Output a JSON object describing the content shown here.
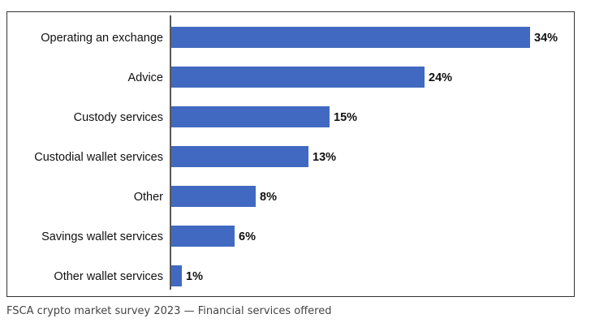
{
  "chart_data": {
    "type": "bar",
    "orientation": "horizontal",
    "title": "",
    "xlabel": "",
    "ylabel": "",
    "categories": [
      "Operating an exchange",
      "Advice",
      "Custody services",
      "Custodial wallet services",
      "Other",
      "Savings wallet services",
      "Other wallet services"
    ],
    "values": [
      34,
      24,
      15,
      13,
      8,
      6,
      1
    ],
    "value_suffix": "%",
    "xlim": [
      0,
      34
    ],
    "bar_color": "#4169C1",
    "grid": false,
    "legend": "none"
  },
  "caption": "FSCA crypto market survey 2023 — Financial services offered"
}
